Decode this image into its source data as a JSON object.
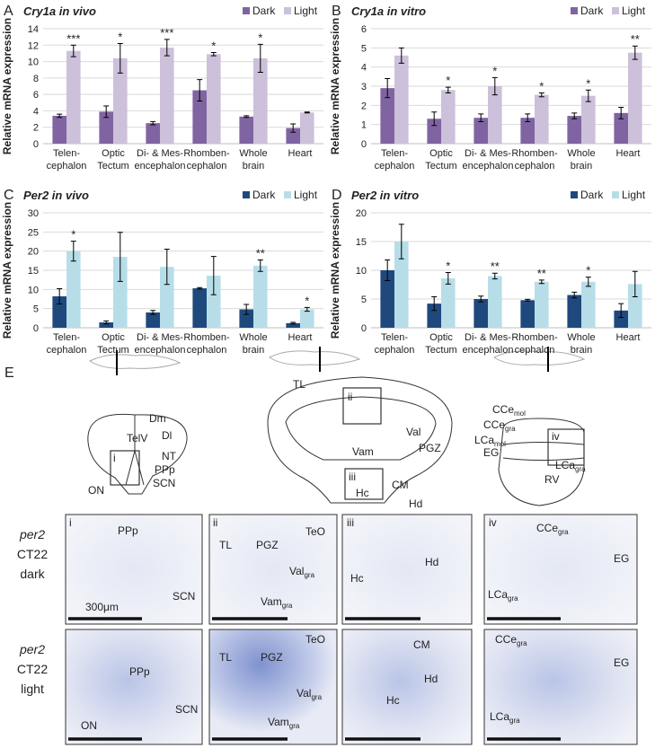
{
  "chart_data": [
    {
      "type": "bar",
      "panel": "A",
      "title": "Cry1a in vivo",
      "ylabel": "Relative mRNA expression",
      "categories": [
        [
          "Telen-",
          "cephalon"
        ],
        [
          "Optic",
          "Tectum"
        ],
        [
          "Di- & Mes-",
          "encephalon"
        ],
        [
          "Rhomben-",
          "cephalon"
        ],
        [
          "Whole",
          "brain"
        ],
        [
          "Heart"
        ]
      ],
      "series": [
        {
          "name": "Dark",
          "color": "#8064a2",
          "values": [
            3.4,
            3.9,
            2.5,
            6.5,
            3.3,
            1.9
          ],
          "errors": [
            0.2,
            0.7,
            0.2,
            1.3,
            0.1,
            0.5
          ]
        },
        {
          "name": "Light",
          "color": "#ccc0da",
          "values": [
            11.3,
            10.4,
            11.7,
            10.9,
            10.4,
            3.8
          ],
          "errors": [
            0.7,
            1.8,
            1.0,
            0.2,
            1.7,
            0.05
          ],
          "annotations": [
            "***",
            "*",
            "***",
            "*",
            "*",
            null
          ]
        }
      ],
      "ylim": [
        0,
        14
      ],
      "yticks": [
        0,
        2,
        4,
        6,
        8,
        10,
        12,
        14
      ],
      "grid": true,
      "legend": "top-right"
    },
    {
      "type": "bar",
      "panel": "B",
      "title": "Cry1a in vitro",
      "ylabel": "Relative mRNA expression",
      "categories": [
        [
          "Telen-",
          "cephalon"
        ],
        [
          "Optic",
          "Tectum"
        ],
        [
          "Di- & Mes-",
          "encephalon"
        ],
        [
          "Rhomben-",
          "cephalon"
        ],
        [
          "Whole",
          "brain"
        ],
        [
          "Heart"
        ]
      ],
      "series": [
        {
          "name": "Dark",
          "color": "#8064a2",
          "values": [
            2.9,
            1.3,
            1.35,
            1.35,
            1.45,
            1.6
          ],
          "errors": [
            0.5,
            0.35,
            0.2,
            0.2,
            0.15,
            0.3
          ]
        },
        {
          "name": "Light",
          "color": "#ccc0da",
          "values": [
            4.6,
            2.8,
            3.0,
            2.55,
            2.5,
            4.75
          ],
          "errors": [
            0.4,
            0.15,
            0.45,
            0.1,
            0.3,
            0.35
          ],
          "annotations": [
            null,
            "*",
            "*",
            "*",
            "*",
            "**"
          ]
        }
      ],
      "ylim": [
        0,
        6
      ],
      "yticks": [
        0,
        1,
        2,
        3,
        4,
        5,
        6
      ],
      "grid": true,
      "legend": "top-right"
    },
    {
      "type": "bar",
      "panel": "C",
      "title": "Per2 in vivo",
      "ylabel": "Relative mRNA expression",
      "categories": [
        [
          "Telen-",
          "cephalon"
        ],
        [
          "Optic",
          "Tectum"
        ],
        [
          "Di- & Mes-",
          "encephalon"
        ],
        [
          "Rhomben-",
          "cephalon"
        ],
        [
          "Whole",
          "brain"
        ],
        [
          "Heart"
        ]
      ],
      "series": [
        {
          "name": "Dark",
          "color": "#1f497d",
          "values": [
            8.2,
            1.4,
            4.0,
            10.3,
            4.8,
            1.2
          ],
          "errors": [
            2.0,
            0.4,
            0.5,
            0.2,
            1.3,
            0.2
          ]
        },
        {
          "name": "Light",
          "color": "#b7dee8",
          "values": [
            20,
            18.5,
            15.9,
            13.6,
            16.2,
            4.8
          ],
          "errors": [
            2.6,
            6.4,
            4.6,
            5.0,
            1.5,
            0.5
          ],
          "annotations": [
            "*",
            null,
            null,
            null,
            "**",
            "*"
          ]
        }
      ],
      "ylim": [
        0,
        30
      ],
      "yticks": [
        0,
        5,
        10,
        15,
        20,
        25,
        30
      ],
      "grid": true,
      "legend": "top-right"
    },
    {
      "type": "bar",
      "panel": "D",
      "title": "Per2 in vitro",
      "ylabel": "Relative mRNA expression",
      "categories": [
        [
          "Telen-",
          "cephalon"
        ],
        [
          "Optic",
          "Tectum"
        ],
        [
          "Di- & Mes-",
          "encephalon"
        ],
        [
          "Rhomben-",
          "cephalon"
        ],
        [
          "Whole",
          "brain"
        ],
        [
          "Heart"
        ]
      ],
      "series": [
        {
          "name": "Dark",
          "color": "#1f497d",
          "values": [
            10,
            4.2,
            5.0,
            4.8,
            5.7,
            3.0
          ],
          "errors": [
            1.8,
            1.2,
            0.5,
            0.15,
            0.5,
            1.2
          ]
        },
        {
          "name": "Light",
          "color": "#b7dee8",
          "values": [
            15,
            8.6,
            9.0,
            8.0,
            8.0,
            7.6
          ],
          "errors": [
            3.0,
            1.0,
            0.5,
            0.3,
            0.8,
            2.2
          ],
          "annotations": [
            null,
            "*",
            "**",
            "**",
            "*",
            null
          ]
        }
      ],
      "ylim": [
        0,
        20
      ],
      "yticks": [
        0,
        5,
        10,
        15,
        20
      ],
      "grid": true,
      "legend": "top-right"
    }
  ],
  "panel_e": {
    "letter": "E",
    "diagram_1": [
      "Dm",
      "Dl",
      "TelV",
      "NT",
      "PPp",
      "SCN",
      "ON",
      "i"
    ],
    "diagram_2": [
      "TL",
      "ii",
      "Val",
      "Vam",
      "PGZ",
      "iii",
      "CM",
      "Hc",
      "Hd"
    ],
    "diagram_3": [
      [
        "CCe",
        "mol"
      ],
      [
        "CCe",
        "gra"
      ],
      [
        "LCa",
        "mol"
      ],
      "iv",
      "EG",
      [
        "LCa",
        "gra"
      ],
      "RV"
    ],
    "row_labels": [
      [
        "per2",
        "CT22",
        "dark"
      ],
      [
        "per2",
        "CT22",
        "light"
      ]
    ],
    "scale_bar": "300μm",
    "dark_row": [
      [
        "i",
        "PPp",
        "SCN"
      ],
      [
        "ii",
        "TL",
        "PGZ",
        "TeO",
        [
          "Val",
          "gra"
        ],
        [
          "Vam",
          "gra"
        ]
      ],
      [
        "iii",
        "Hc",
        "Hd"
      ],
      [
        "iv",
        [
          "CCe",
          "gra"
        ],
        "EG",
        [
          "LCa",
          "gra"
        ]
      ]
    ],
    "light_row": [
      [
        "PPp",
        "ON",
        "SCN"
      ],
      [
        "TL",
        "TeO",
        "PGZ",
        [
          "Val",
          "gra"
        ],
        [
          "Vam",
          "gra"
        ]
      ],
      [
        "CM",
        "Hd",
        "Hc"
      ],
      [
        [
          "CCe",
          "gra"
        ],
        "EG",
        [
          "LCa",
          "gra"
        ]
      ]
    ]
  }
}
